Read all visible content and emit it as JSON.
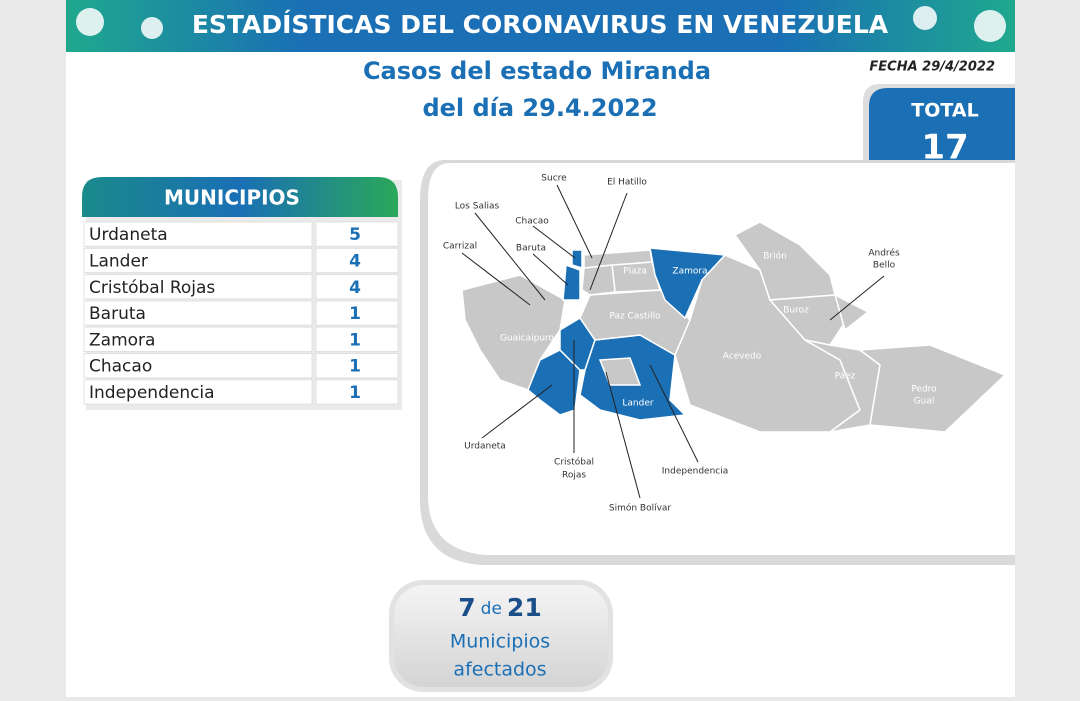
{
  "header": {
    "title": "ESTADÍSTICAS DEL CORONAVIRUS EN VENEZUELA",
    "date": "FECHA 29/4/2022"
  },
  "subtitle": {
    "line1": "Casos del estado Miranda",
    "line2": "del día 29.4.2022"
  },
  "total": {
    "label": "TOTAL",
    "value": 17
  },
  "table": {
    "header": "MUNICIPIOS",
    "rows": [
      [
        "Urdaneta",
        5
      ],
      [
        "Lander",
        4
      ],
      [
        "Cristóbal Rojas",
        4
      ],
      [
        "Baruta",
        1
      ],
      [
        "Zamora",
        1
      ],
      [
        "Chacao",
        1
      ],
      [
        "Independencia",
        1
      ]
    ]
  },
  "map": {
    "labels": [
      "Sucre",
      "El Hatillo",
      "Los Salias",
      "Chacao",
      "Carrizal",
      "Baruta",
      "Plaza",
      "Zamora",
      "Brión",
      "Andrés",
      "Bello",
      "Guaicaipuro",
      "Paz Castillo",
      "Buroz",
      "Acevedo",
      "Páez",
      "Pedro",
      "Gual",
      "Lander",
      "Urdaneta",
      "Cristóbal",
      "Rojas",
      "Independencia",
      "Simón Bolívar"
    ]
  },
  "footer": {
    "affected": 7,
    "of": "de",
    "total": 21,
    "line1": "Municipios",
    "line2": "afectados"
  }
}
